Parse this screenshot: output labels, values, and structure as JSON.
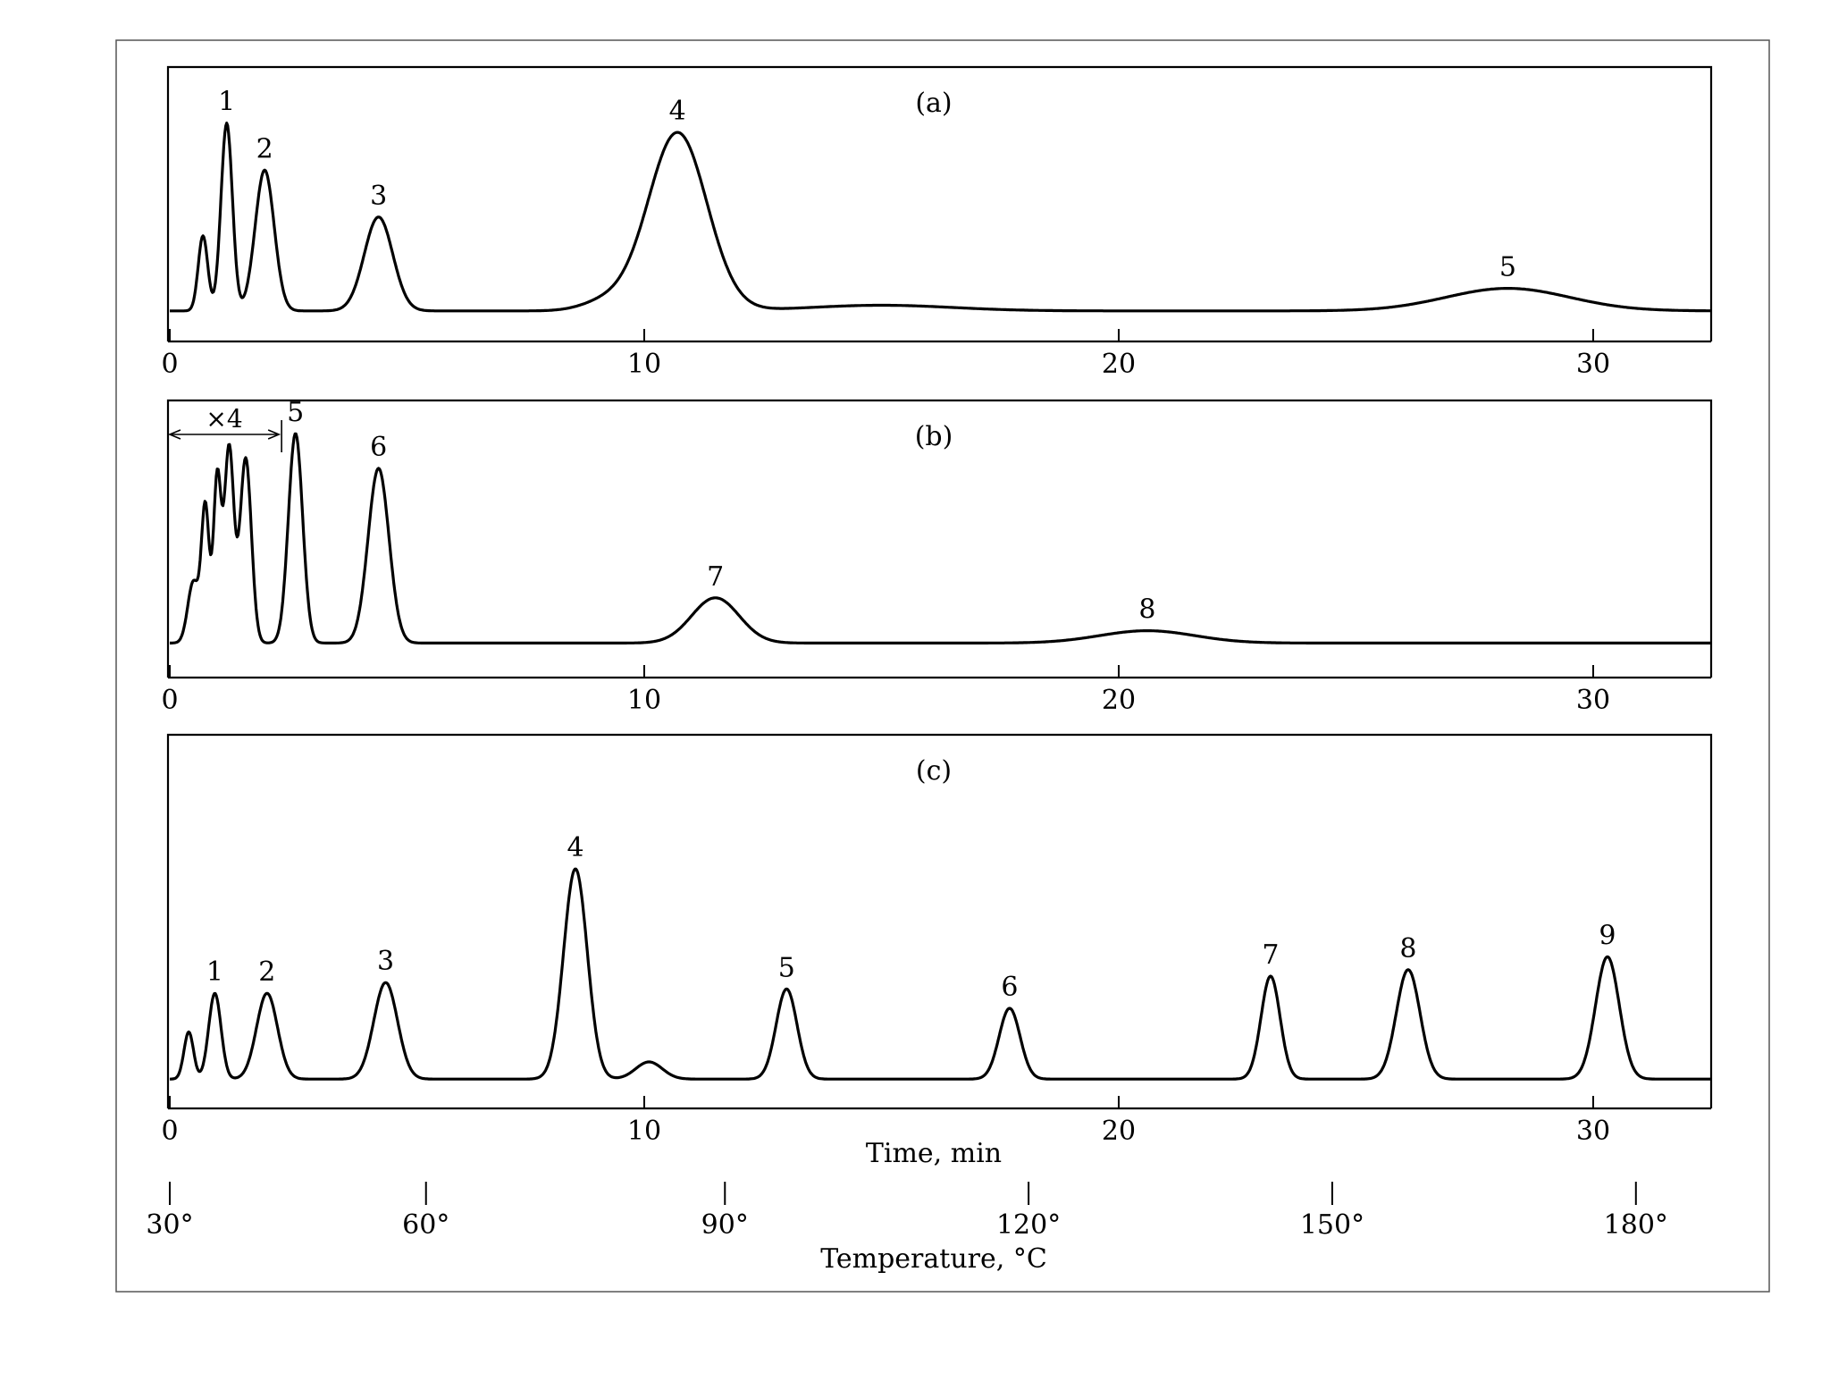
{
  "figure": {
    "background": "#ffffff",
    "ink_color": "#000000",
    "x_axis_title": "Time, min",
    "temp_axis_title": "Temperature, °C",
    "temperature_ticks": [
      {
        "time": 0,
        "label": "30°"
      },
      {
        "time": 5.4,
        "label": "60°"
      },
      {
        "time": 11.7,
        "label": "90°"
      },
      {
        "time": 18.1,
        "label": "120°"
      },
      {
        "time": 24.5,
        "label": "150°"
      },
      {
        "time": 30.9,
        "label": "180°"
      }
    ]
  },
  "chart_data": [
    {
      "type": "line",
      "panel_label": "(a)",
      "x_ticks": [
        {
          "value": 0,
          "label": "0"
        },
        {
          "value": 10,
          "label": "10"
        },
        {
          "value": 20,
          "label": "20"
        },
        {
          "value": 30,
          "label": "30"
        }
      ],
      "xlim": [
        0,
        32.5
      ],
      "ylim": [
        0,
        1.1
      ],
      "baseline": 0.02,
      "annotation": null,
      "peaks": [
        {
          "label": null,
          "t": 0.7,
          "h": 0.4,
          "w": 0.1
        },
        {
          "label": "1",
          "t": 1.2,
          "h": 1.0,
          "w": 0.12
        },
        {
          "label": "2",
          "t": 2.0,
          "h": 0.75,
          "w": 0.2
        },
        {
          "label": "3",
          "t": 4.4,
          "h": 0.5,
          "w": 0.3
        },
        {
          "label": null,
          "t": 9.2,
          "h": 0.05,
          "w": 0.5
        },
        {
          "label": "4",
          "t": 10.7,
          "h": 0.95,
          "w": 0.62
        },
        {
          "label": null,
          "t": 15.0,
          "h": 0.03,
          "w": 1.5
        },
        {
          "label": "5",
          "t": 28.2,
          "h": 0.12,
          "w": 1.3
        }
      ]
    },
    {
      "type": "line",
      "panel_label": "(b)",
      "x_ticks": [
        {
          "value": 0,
          "label": "0"
        },
        {
          "value": 10,
          "label": "10"
        },
        {
          "value": 20,
          "label": "20"
        },
        {
          "value": 30,
          "label": "30"
        }
      ],
      "xlim": [
        0,
        32.5
      ],
      "ylim": [
        0,
        1.1
      ],
      "baseline": 0.02,
      "annotation": {
        "text": "×4",
        "from": 0,
        "to": 2.3
      },
      "peaks": [
        {
          "label": null,
          "t": 0.5,
          "h": 0.3,
          "w": 0.12
        },
        {
          "label": null,
          "t": 0.75,
          "h": 0.65,
          "w": 0.08
        },
        {
          "label": null,
          "t": 1.0,
          "h": 0.8,
          "w": 0.08
        },
        {
          "label": null,
          "t": 1.25,
          "h": 0.95,
          "w": 0.1
        },
        {
          "label": null,
          "t": 1.6,
          "h": 0.9,
          "w": 0.12
        },
        {
          "label": "5",
          "t": 2.65,
          "h": 1.02,
          "w": 0.15
        },
        {
          "label": "6",
          "t": 4.4,
          "h": 0.85,
          "w": 0.22
        },
        {
          "label": "7",
          "t": 11.5,
          "h": 0.22,
          "w": 0.5
        },
        {
          "label": "8",
          "t": 20.6,
          "h": 0.06,
          "w": 1.0
        }
      ]
    },
    {
      "type": "line",
      "panel_label": "(c)",
      "x_ticks": [
        {
          "value": 0,
          "label": "0"
        },
        {
          "value": 10,
          "label": "10"
        },
        {
          "value": 20,
          "label": "20"
        },
        {
          "value": 30,
          "label": "30"
        }
      ],
      "xlim": [
        0,
        32.5
      ],
      "ylim": [
        0,
        1.1
      ],
      "baseline": 0.02,
      "annotation": null,
      "peaks": [
        {
          "label": null,
          "t": 0.4,
          "h": 0.22,
          "w": 0.1
        },
        {
          "label": "1",
          "t": 0.95,
          "h": 0.4,
          "w": 0.13
        },
        {
          "label": "2",
          "t": 2.05,
          "h": 0.4,
          "w": 0.22
        },
        {
          "label": "3",
          "t": 4.55,
          "h": 0.45,
          "w": 0.25
        },
        {
          "label": "4",
          "t": 8.55,
          "h": 0.98,
          "w": 0.25
        },
        {
          "label": null,
          "t": 10.1,
          "h": 0.08,
          "w": 0.28
        },
        {
          "label": "5",
          "t": 13.0,
          "h": 0.42,
          "w": 0.22
        },
        {
          "label": "6",
          "t": 17.7,
          "h": 0.33,
          "w": 0.22
        },
        {
          "label": "7",
          "t": 23.2,
          "h": 0.48,
          "w": 0.2
        },
        {
          "label": "8",
          "t": 26.1,
          "h": 0.51,
          "w": 0.25
        },
        {
          "label": "9",
          "t": 30.3,
          "h": 0.57,
          "w": 0.25
        }
      ]
    }
  ]
}
